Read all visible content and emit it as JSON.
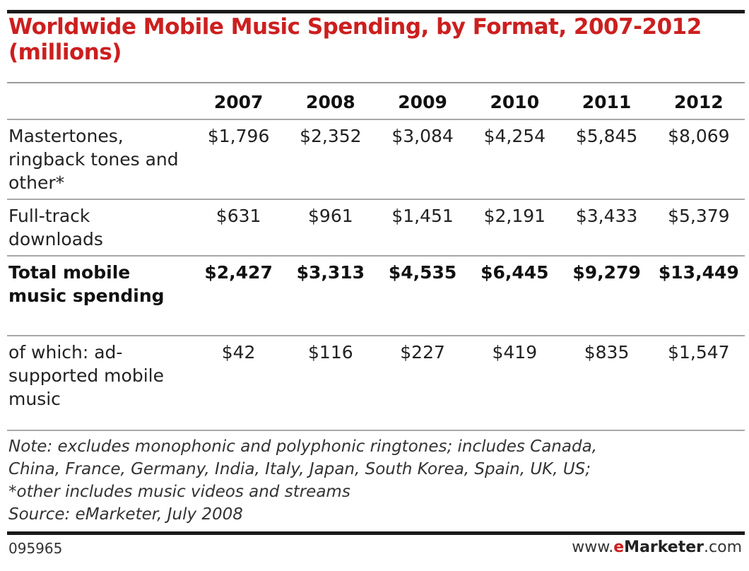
{
  "colors": {
    "title": "#cc1f1f",
    "rule": "#1a1a1a",
    "divider": "#a8a8a8",
    "text": "#222222"
  },
  "chart_data": {
    "type": "table",
    "title": "Worldwide Mobile Music Spending, by Format, 2007-2012 (millions)",
    "columns": [
      "",
      "2007",
      "2008",
      "2009",
      "2010",
      "2011",
      "2012"
    ],
    "rows": [
      {
        "label": "Mastertones, ringback tones and other*",
        "values": [
          "$1,796",
          "$2,352",
          "$3,084",
          "$4,254",
          "$5,845",
          "$8,069"
        ],
        "bold": false
      },
      {
        "label": "Full-track downloads",
        "values": [
          "$631",
          "$961",
          "$1,451",
          "$2,191",
          "$3,433",
          "$5,379"
        ],
        "bold": false
      },
      {
        "label": "Total mobile music spending",
        "values": [
          "$2,427",
          "$3,313",
          "$4,535",
          "$6,445",
          "$9,279",
          "$13,449"
        ],
        "bold": true
      },
      {
        "label": "of which: ad-supported mobile music",
        "values": [
          "$42",
          "$116",
          "$227",
          "$419",
          "$835",
          "$1,547"
        ],
        "bold": false
      }
    ]
  },
  "note": {
    "line1": "Note: excludes monophonic and polyphonic ringtones; includes Canada,",
    "line2": "China, France, Germany, India, Italy, Japan, South Korea, Spain, UK, US;",
    "line3": "*other includes music videos and streams",
    "line4": "Source: eMarketer, July 2008"
  },
  "footer": {
    "chart_id": "095965",
    "brand_prefix": "www.",
    "brand_e": "e",
    "brand_mid": "Marketer",
    "brand_suffix": ".com"
  }
}
